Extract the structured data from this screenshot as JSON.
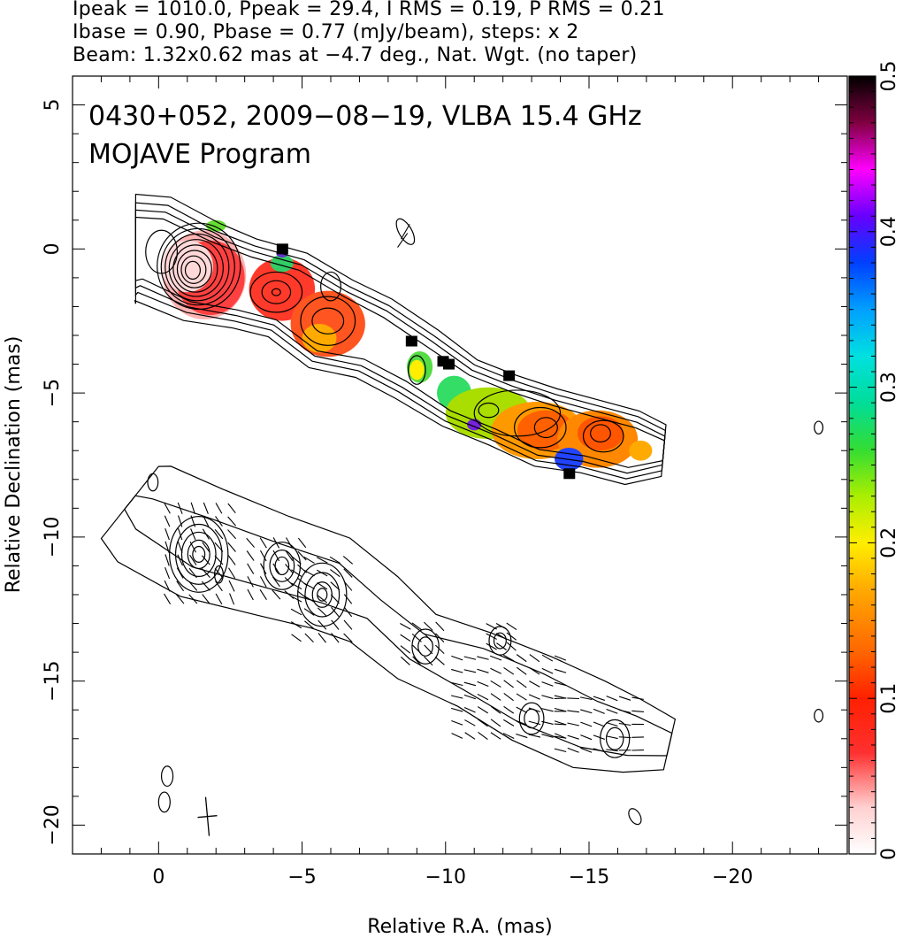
{
  "header": {
    "line1": "Ipeak = 1010.0, Ppeak = 29.4, I RMS = 0.19, P RMS = 0.21",
    "line2": "Ibase = 0.90, Pbase = 0.77 (mJy/beam), steps: x 2",
    "line3": "Beam: 1.32x0.62 mas at −4.7 deg., Nat. Wgt. (no taper)"
  },
  "chart_data": {
    "type": "heatmap",
    "annotation_line1": "0430+052, 2009−08−19, VLBA 15.4 GHz",
    "annotation_line2": "MOJAVE Program",
    "xlabel": "Relative R.A. (mas)",
    "ylabel": "Relative Declination (mas)",
    "xlim": [
      3,
      -24
    ],
    "ylim": [
      -21,
      6
    ],
    "xticks": [
      0,
      -5,
      -10,
      -15,
      -20
    ],
    "xtick_labels": [
      "0",
      "−5",
      "−10",
      "−15",
      "−20"
    ],
    "yticks": [
      5,
      0,
      -5,
      -10,
      -15,
      -20
    ],
    "ytick_labels": [
      "5",
      "0",
      "−5",
      "−10",
      "−15",
      "−20"
    ],
    "colorbar": {
      "range": [
        0,
        0.5
      ],
      "ticks": [
        0,
        0.1,
        0.2,
        0.3,
        0.4,
        0.5
      ],
      "tick_labels": [
        "0",
        "0.1",
        "0.2",
        "0.3",
        "0.4",
        "0.5"
      ],
      "colors": [
        "#ffffff",
        "#ff3030",
        "#ff6600",
        "#ffaa00",
        "#ffff00",
        "#33dd33",
        "#00e0e0",
        "#0040ff",
        "#ff00ff",
        "#000000"
      ]
    },
    "upper_panel": {
      "description_source": "total intensity contours with fractional polarization color",
      "core": [
        -0.1,
        -0.1
      ],
      "knots": [
        {
          "x": -1.7,
          "y": -0.8,
          "value": 0.06
        },
        {
          "x": -4.2,
          "y": -1.5,
          "value": 0.07
        },
        {
          "x": -5.8,
          "y": -2.5,
          "value": 0.08
        },
        {
          "x": -9.0,
          "y": -4.2,
          "value": 0.25
        },
        {
          "x": -11.5,
          "y": -5.5,
          "value": 0.15
        },
        {
          "x": -13.5,
          "y": -6.2,
          "value": 0.1
        },
        {
          "x": -15.5,
          "y": -6.5,
          "value": 0.12
        }
      ]
    },
    "lower_panel": {
      "description_source": "polarized intensity contours with EVPA sticks",
      "offset_dec": -10
    }
  }
}
